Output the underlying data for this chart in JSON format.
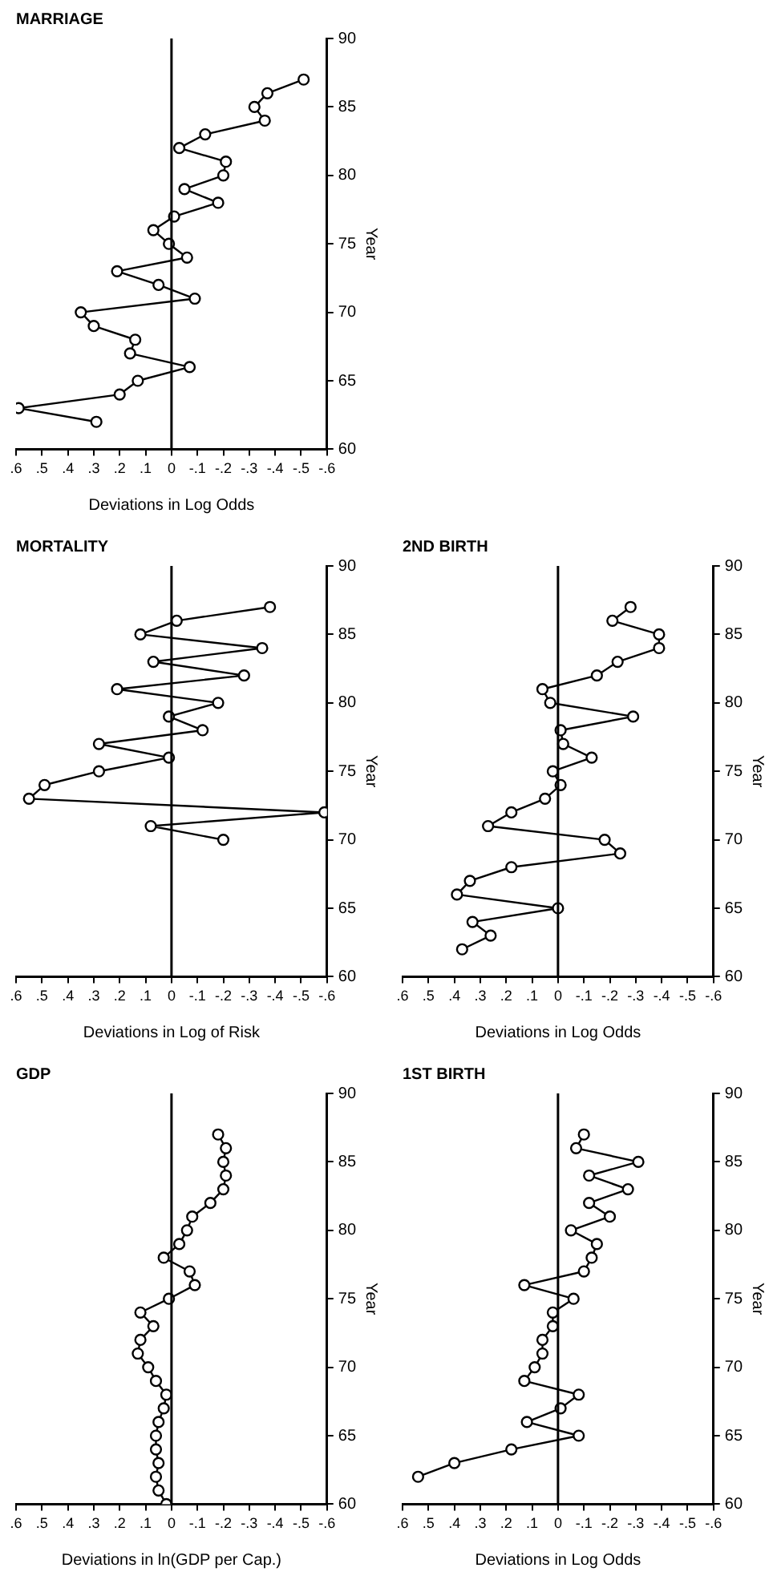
{
  "chart_data": [
    {
      "type": "line",
      "title": "GDP",
      "xlabel": "Deviations in ln(GDP per Cap.)",
      "ylabel": "Year",
      "series": [
        {
          "color": "#000000",
          "x": [
            0.02,
            0.05,
            0.06,
            0.05,
            0.06,
            0.06,
            0.05,
            0.03,
            0.02,
            0.06,
            0.09,
            0.13,
            0.12,
            0.07,
            0.12,
            0.01,
            -0.09,
            -0.07,
            0.03,
            -0.03,
            -0.06,
            -0.08,
            -0.15,
            -0.2,
            -0.21,
            -0.2,
            -0.21,
            -0.18
          ],
          "values": [
            60,
            61,
            62,
            63,
            64,
            65,
            66,
            67,
            68,
            69,
            70,
            71,
            72,
            73,
            74,
            75,
            76,
            77,
            78,
            79,
            80,
            81,
            82,
            83,
            84,
            85,
            86,
            87
          ]
        }
      ],
      "ylim": [
        60,
        90
      ],
      "yticks": [
        60,
        65,
        70,
        75,
        80,
        85,
        90
      ],
      "xlim": [
        0.6,
        -0.6
      ],
      "xticks": [
        {
          "value": 0.6,
          "label": ".6"
        },
        {
          "value": 0.5,
          "label": ".5"
        },
        {
          "value": 0.4,
          "label": ".4"
        },
        {
          "value": 0.3,
          "label": ".3"
        },
        {
          "value": 0.2,
          "label": ".2"
        },
        {
          "value": 0.1,
          "label": ".1"
        },
        {
          "value": 0,
          "label": "0"
        },
        {
          "value": -0.1,
          "label": "-.1"
        },
        {
          "value": -0.2,
          "label": "-.2"
        },
        {
          "value": -0.3,
          "label": "-.3"
        },
        {
          "value": -0.4,
          "label": "-.4"
        },
        {
          "value": -0.5,
          "label": "-.5"
        },
        {
          "value": -0.6,
          "label": "-.6"
        }
      ],
      "ref_lines": [
        {
          "axis": "x",
          "value": 0
        }
      ],
      "marker": "circle",
      "grid": false,
      "legend": false
    },
    {
      "type": "line",
      "title": "MORTALITY",
      "xlabel": "Deviations in Log of Risk",
      "ylabel": "Year",
      "series": [
        {
          "color": "#000000",
          "x": [
            -0.2,
            0.08,
            -0.59,
            0.55,
            0.49,
            0.28,
            0.01,
            0.28,
            -0.12,
            0.01,
            -0.18,
            0.21,
            -0.28,
            0.07,
            -0.35,
            0.12,
            -0.02,
            -0.38
          ],
          "values": [
            70,
            71,
            72,
            73,
            74,
            75,
            76,
            77,
            78,
            79,
            80,
            81,
            82,
            83,
            84,
            85,
            86,
            87
          ]
        }
      ],
      "ylim": [
        60,
        90
      ],
      "yticks": [
        60,
        65,
        70,
        75,
        80,
        85,
        90
      ],
      "xlim": [
        0.6,
        -0.6
      ],
      "xticks": [
        {
          "value": 0.6,
          "label": ".6"
        },
        {
          "value": 0.5,
          "label": ".5"
        },
        {
          "value": 0.4,
          "label": ".4"
        },
        {
          "value": 0.3,
          "label": ".3"
        },
        {
          "value": 0.2,
          "label": ".2"
        },
        {
          "value": 0.1,
          "label": ".1"
        },
        {
          "value": 0,
          "label": "0"
        },
        {
          "value": -0.1,
          "label": "-.1"
        },
        {
          "value": -0.2,
          "label": "-.2"
        },
        {
          "value": -0.3,
          "label": "-.3"
        },
        {
          "value": -0.4,
          "label": "-.4"
        },
        {
          "value": -0.5,
          "label": "-.5"
        },
        {
          "value": -0.6,
          "label": "-.6"
        }
      ],
      "ref_lines": [
        {
          "axis": "x",
          "value": 0
        }
      ],
      "marker": "circle",
      "grid": false,
      "legend": false
    },
    {
      "type": "line",
      "title": "MARRIAGE",
      "xlabel": "Deviations in Log Odds",
      "ylabel": "Year",
      "series": [
        {
          "color": "#000000",
          "x": [
            0.29,
            0.59,
            0.2,
            0.13,
            -0.07,
            0.16,
            0.14,
            0.3,
            0.35,
            -0.09,
            0.05,
            0.21,
            -0.06,
            0.01,
            0.07,
            -0.01,
            -0.18,
            -0.05,
            -0.2,
            -0.21,
            -0.03,
            -0.13,
            -0.36,
            -0.32,
            -0.37,
            -0.51
          ],
          "values": [
            62,
            63,
            64,
            65,
            66,
            67,
            68,
            69,
            70,
            71,
            72,
            73,
            74,
            75,
            76,
            77,
            78,
            79,
            80,
            81,
            82,
            83,
            84,
            85,
            86,
            87
          ]
        }
      ],
      "ylim": [
        60,
        90
      ],
      "yticks": [
        60,
        65,
        70,
        75,
        80,
        85,
        90
      ],
      "xlim": [
        0.6,
        -0.6
      ],
      "xticks": [
        {
          "value": 0.6,
          "label": ".6"
        },
        {
          "value": 0.5,
          "label": ".5"
        },
        {
          "value": 0.4,
          "label": ".4"
        },
        {
          "value": 0.3,
          "label": ".3"
        },
        {
          "value": 0.2,
          "label": ".2"
        },
        {
          "value": 0.1,
          "label": ".1"
        },
        {
          "value": 0,
          "label": "0"
        },
        {
          "value": -0.1,
          "label": "-.1"
        },
        {
          "value": -0.2,
          "label": "-.2"
        },
        {
          "value": -0.3,
          "label": "-.3"
        },
        {
          "value": -0.4,
          "label": "-.4"
        },
        {
          "value": -0.5,
          "label": "-.5"
        },
        {
          "value": -0.6,
          "label": "-.6"
        }
      ],
      "ref_lines": [
        {
          "axis": "x",
          "value": 0
        }
      ],
      "marker": "circle",
      "grid": false,
      "legend": false
    },
    {
      "type": "line",
      "title": "1ST BIRTH",
      "xlabel": "Deviations in Log Odds",
      "ylabel": "Year",
      "series": [
        {
          "color": "#000000",
          "x": [
            0.54,
            0.4,
            0.18,
            -0.08,
            0.12,
            -0.01,
            -0.08,
            0.13,
            0.09,
            0.06,
            0.06,
            0.02,
            0.02,
            -0.06,
            0.13,
            -0.1,
            -0.13,
            -0.15,
            -0.05,
            -0.2,
            -0.12,
            -0.27,
            -0.12,
            -0.31,
            -0.07,
            -0.1
          ],
          "values": [
            62,
            63,
            64,
            65,
            66,
            67,
            68,
            69,
            70,
            71,
            72,
            73,
            74,
            75,
            76,
            77,
            78,
            79,
            80,
            81,
            82,
            83,
            84,
            85,
            86,
            87
          ]
        }
      ],
      "ylim": [
        60,
        90
      ],
      "yticks": [
        60,
        65,
        70,
        75,
        80,
        85,
        90
      ],
      "xlim": [
        0.6,
        -0.6
      ],
      "xticks": [
        {
          "value": 0.6,
          "label": ".6"
        },
        {
          "value": 0.5,
          "label": ".5"
        },
        {
          "value": 0.4,
          "label": ".4"
        },
        {
          "value": 0.3,
          "label": ".3"
        },
        {
          "value": 0.2,
          "label": ".2"
        },
        {
          "value": 0.1,
          "label": ".1"
        },
        {
          "value": 0,
          "label": "0"
        },
        {
          "value": -0.1,
          "label": "-.1"
        },
        {
          "value": -0.2,
          "label": "-.2"
        },
        {
          "value": -0.3,
          "label": "-.3"
        },
        {
          "value": -0.4,
          "label": "-.4"
        },
        {
          "value": -0.5,
          "label": "-.5"
        },
        {
          "value": -0.6,
          "label": "-.6"
        }
      ],
      "ref_lines": [
        {
          "axis": "x",
          "value": 0
        }
      ],
      "marker": "circle",
      "grid": false,
      "legend": false
    },
    {
      "type": "line",
      "title": "2ND BIRTH",
      "xlabel": "Deviations in Log Odds",
      "ylabel": "Year",
      "series": [
        {
          "color": "#000000",
          "x": [
            0.37,
            0.26,
            0.33,
            0,
            0.39,
            0.34,
            0.18,
            -0.24,
            -0.18,
            0.27,
            0.18,
            0.05,
            -0.01,
            0.02,
            -0.13,
            -0.02,
            -0.01,
            -0.29,
            0.03,
            0.06,
            -0.15,
            -0.23,
            -0.39,
            -0.39,
            -0.21,
            -0.28
          ],
          "values": [
            62,
            63,
            64,
            65,
            66,
            67,
            68,
            69,
            70,
            71,
            72,
            73,
            74,
            75,
            76,
            77,
            78,
            79,
            80,
            81,
            82,
            83,
            84,
            85,
            86,
            87
          ]
        }
      ],
      "ylim": [
        60,
        90
      ],
      "yticks": [
        60,
        65,
        70,
        75,
        80,
        85,
        90
      ],
      "xlim": [
        0.6,
        -0.6
      ],
      "xticks": [
        {
          "value": 0.6,
          "label": ".6"
        },
        {
          "value": 0.5,
          "label": ".5"
        },
        {
          "value": 0.4,
          "label": ".4"
        },
        {
          "value": 0.3,
          "label": ".3"
        },
        {
          "value": 0.2,
          "label": ".2"
        },
        {
          "value": 0.1,
          "label": ".1"
        },
        {
          "value": 0,
          "label": "0"
        },
        {
          "value": -0.1,
          "label": "-.1"
        },
        {
          "value": -0.2,
          "label": "-.2"
        },
        {
          "value": -0.3,
          "label": "-.3"
        },
        {
          "value": -0.4,
          "label": "-.4"
        },
        {
          "value": -0.5,
          "label": "-.5"
        },
        {
          "value": -0.6,
          "label": "-.6"
        }
      ],
      "ref_lines": [
        {
          "axis": "x",
          "value": 0
        }
      ],
      "marker": "circle",
      "grid": false,
      "legend": false
    }
  ]
}
